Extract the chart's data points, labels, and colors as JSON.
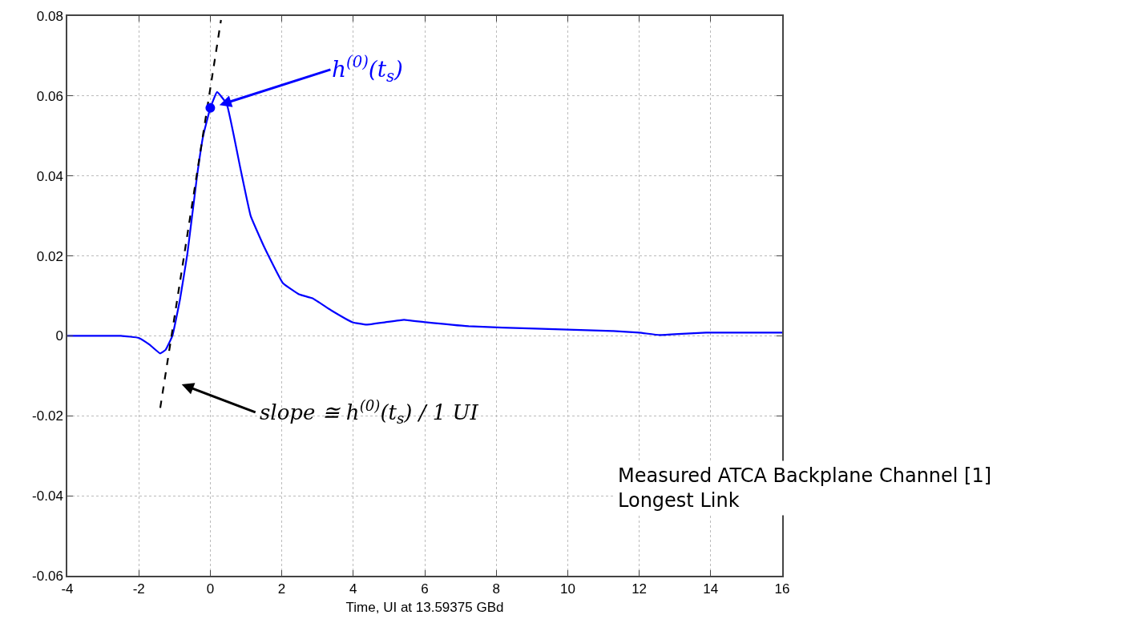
{
  "chart_data": {
    "type": "line",
    "xlabel": "Time, UI at 13.59375 GBd",
    "series": [
      {
        "color": "#0000ff",
        "x": [
          -4,
          -2.5,
          -2,
          -1.7,
          -1.4,
          -1.25,
          -1.06,
          -0.85,
          -0.64,
          -0.37,
          -0.2,
          0,
          0.19,
          0.46,
          0.84,
          1.13,
          1.52,
          2.03,
          2.48,
          2.86,
          3.38,
          3.98,
          4.37,
          4.9,
          5.42,
          6.02,
          7.23,
          9.1,
          11.27,
          12.0,
          12.57,
          13.2,
          13.87,
          16
        ],
        "values": [
          0,
          0,
          -0.0005,
          -0.0022,
          -0.0044,
          -0.0035,
          0,
          0.009,
          0.0206,
          0.04,
          0.05,
          0.057,
          0.061,
          0.058,
          0.042,
          0.03,
          0.022,
          0.0132,
          0.0104,
          0.0094,
          0.0064,
          0.0034,
          0.0028,
          0.0034,
          0.004,
          0.0034,
          0.0024,
          0.0018,
          0.0012,
          0.0008,
          0.0002,
          0.0005,
          0.0008,
          0.0008
        ]
      },
      {
        "type": "line",
        "color": "#000000",
        "line_style": "dashed",
        "x": [
          -1.4,
          0.3
        ],
        "values": [
          -0.018,
          0.079
        ]
      },
      {
        "type": "scatter",
        "color": "#0000ff",
        "marker": "circle",
        "x": [
          0
        ],
        "values": [
          0.057
        ]
      }
    ],
    "xlim": [
      -4,
      16
    ],
    "xticks": [
      -4,
      -2,
      0,
      2,
      4,
      6,
      8,
      10,
      12,
      14,
      16
    ],
    "ylim": [
      -0.06,
      0.08
    ],
    "yticks": [
      -0.06,
      -0.04,
      -0.02,
      0,
      0.02,
      0.04,
      0.06,
      0.08
    ],
    "grid": true,
    "marker": "none",
    "line_style": "solid",
    "annotations": [
      {
        "text": "h$^{(0)}$(t$_{s}$)",
        "x": 0,
        "y": 0.057
      },
      "slope ≅ h$^{(0)}$(t$_{s}$) / 1 UI",
      "Measured ATCA Backplane Channel [1]\nLongest Link"
    ]
  }
}
